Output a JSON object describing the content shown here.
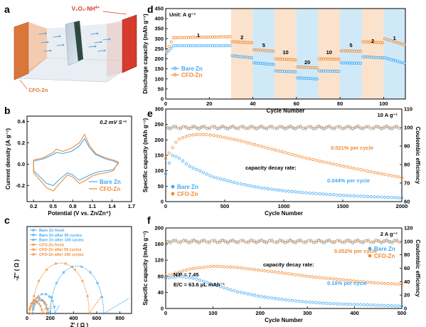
{
  "panel_labels": [
    "a",
    "b",
    "c",
    "d",
    "e",
    "f"
  ],
  "colors": {
    "bare": "#3fa9f5",
    "cfo": "#f28a30",
    "cfo_dark": "#e06d10",
    "band_blue": "#cfe9f9",
    "band_orange": "#fbe2cc",
    "cathode": "#d63b2c",
    "anode": "#d9773a"
  },
  "panel_a": {
    "cathode_label_main": "V₂O₅·NH",
    "cathode_label_sup": "4+",
    "anode_label": "CFO-Zn"
  },
  "chart_data": [
    {
      "id": "b",
      "type": "line",
      "xlabel": "Potential (V vs. Zn/Zn⁺)",
      "ylabel": "Current density (A g⁻¹)",
      "annotation": "0.2 mV S⁻¹",
      "xlim": [
        0.1,
        1.7
      ],
      "ylim": [
        -0.35,
        0.45
      ],
      "xticks": [
        "0.2",
        "0.5",
        "0.8",
        "1.1",
        "1.4",
        "1.7"
      ],
      "yticks": [
        "-0.2",
        "0.0",
        "0.2",
        "0.4"
      ],
      "series": [
        {
          "name": "Bare Zn",
          "color": "#3fa9f5",
          "x": [
            0.2,
            0.35,
            0.5,
            0.55,
            0.65,
            0.78,
            0.9,
            0.98,
            1.05,
            1.15,
            1.3,
            1.42,
            1.5,
            1.42,
            1.32,
            1.2,
            1.1,
            1.0,
            0.9,
            0.8,
            0.72,
            0.6,
            0.5,
            0.4,
            0.3,
            0.2
          ],
          "y": [
            0.03,
            0.05,
            0.09,
            0.11,
            0.1,
            0.12,
            0.17,
            0.24,
            0.16,
            0.09,
            0.05,
            0.03,
            0.01,
            -0.05,
            -0.06,
            -0.07,
            -0.09,
            -0.12,
            -0.15,
            -0.1,
            -0.08,
            -0.14,
            -0.2,
            -0.18,
            -0.12,
            -0.06
          ]
        },
        {
          "name": "CFO-Zn",
          "color": "#f28a30",
          "x": [
            0.2,
            0.35,
            0.5,
            0.55,
            0.65,
            0.78,
            0.9,
            0.98,
            1.05,
            1.15,
            1.3,
            1.42,
            1.5,
            1.42,
            1.32,
            1.2,
            1.1,
            1.0,
            0.9,
            0.8,
            0.72,
            0.6,
            0.5,
            0.4,
            0.3,
            0.2
          ],
          "y": [
            0.04,
            0.06,
            0.11,
            0.14,
            0.12,
            0.15,
            0.2,
            0.28,
            0.18,
            0.1,
            0.06,
            0.04,
            0.02,
            -0.06,
            -0.08,
            -0.09,
            -0.11,
            -0.15,
            -0.18,
            -0.12,
            -0.1,
            -0.18,
            -0.25,
            -0.22,
            -0.15,
            -0.08
          ]
        }
      ],
      "legend": [
        "Bare Zn",
        "CFO-Zn"
      ]
    },
    {
      "id": "c",
      "type": "line",
      "xlabel": "Z' ( Ω )",
      "ylabel": "-Z'' ( Ω )",
      "xlim": [
        0,
        900
      ],
      "ylim": [
        0,
        400
      ],
      "xticks": [
        "0",
        "200",
        "400",
        "600",
        "800"
      ],
      "yticks": [],
      "series": [
        {
          "name": "Bare Zn fresh",
          "color": "#3fa9f5",
          "center": 430,
          "radius": 230,
          "tail_x": 880,
          "tail_y": 70
        },
        {
          "name": "Bare Zn after 50 cycles",
          "color": "#3fa9f5",
          "center": 145,
          "radius": 95,
          "tail_x": 280,
          "tail_y": 40
        },
        {
          "name": "Bare Zn after 100 cycles",
          "color": "#3fa9f5",
          "center": 115,
          "radius": 65,
          "tail_x": 220,
          "tail_y": 30
        },
        {
          "name": "CFO-Zn fresh",
          "color": "#f28a30",
          "center": 290,
          "radius": 245,
          "tail_x": 640,
          "tail_y": 80
        },
        {
          "name": "CFO-Zn after 50 cycles",
          "color": "#f28a30",
          "center": 95,
          "radius": 75,
          "tail_x": 210,
          "tail_y": 45
        },
        {
          "name": "CFO-Zn after 100 cycles",
          "color": "#f28a30",
          "center": 75,
          "radius": 55,
          "tail_x": 170,
          "tail_y": 35
        }
      ],
      "legend": [
        "Bare Zn fresh",
        "Bare Zn after 50 cycles",
        "Bare Zn after 100 cycles",
        "CFO-Zn fresh",
        "CFO-Zn after 50 cycles",
        "CFO-Zn after 100 cycles"
      ]
    },
    {
      "id": "d",
      "type": "scatter",
      "unit_label": "Unit: A g⁻¹",
      "xlabel": "Cycle Number",
      "ylabel": "Discharge capacity (mAh g⁻¹)",
      "xlim": [
        0,
        110
      ],
      "ylim": [
        0,
        450
      ],
      "xticks": [
        "0",
        "20",
        "40",
        "60",
        "80",
        "100"
      ],
      "yticks": [
        "0",
        "50",
        "100",
        "150",
        "200",
        "250",
        "300",
        "350",
        "400",
        "450"
      ],
      "rate_segments": [
        {
          "rate": "1",
          "start": 0,
          "end": 30,
          "band": "none"
        },
        {
          "rate": "2",
          "start": 30,
          "end": 40,
          "band": "orange"
        },
        {
          "rate": "5",
          "start": 40,
          "end": 50,
          "band": "blue"
        },
        {
          "rate": "10",
          "start": 50,
          "end": 60,
          "band": "orange"
        },
        {
          "rate": "20",
          "start": 60,
          "end": 70,
          "band": "blue"
        },
        {
          "rate": "10",
          "start": 70,
          "end": 80,
          "band": "orange"
        },
        {
          "rate": "5",
          "start": 80,
          "end": 90,
          "band": "blue"
        },
        {
          "rate": "2",
          "start": 90,
          "end": 100,
          "band": "orange"
        },
        {
          "rate": "1",
          "start": 100,
          "end": 110,
          "band": "blue"
        }
      ],
      "series": [
        {
          "name": "Bare Zn",
          "color": "#3fa9f5",
          "segments": [
            [
              230,
              265,
              265
            ],
            [
              215,
              205
            ],
            [
              180,
              172
            ],
            [
              140,
              135
            ],
            [
              105,
              100
            ],
            [
              140,
              138
            ],
            [
              180,
              178
            ],
            [
              210,
              205
            ],
            [
              205,
              178
            ]
          ]
        },
        {
          "name": "CFO-Zn",
          "color": "#f28a30",
          "segments": [
            [
              240,
              305,
              310
            ],
            [
              285,
              280
            ],
            [
              245,
              238
            ],
            [
              200,
              195
            ],
            [
              160,
              155
            ],
            [
              200,
              198
            ],
            [
              240,
              238
            ],
            [
              285,
              280
            ],
            [
              300,
              270
            ]
          ]
        }
      ],
      "legend": [
        "Bare Zn",
        "CFO-Zn"
      ]
    },
    {
      "id": "e",
      "type": "scatter",
      "rate_label": "10 A g⁻¹",
      "xlabel": "Cycle Number",
      "ylabel": "Specific capacity (mAh g⁻¹)",
      "y2label": "Coulombic efficiency",
      "xlim": [
        0,
        2000
      ],
      "ylim": [
        0,
        300
      ],
      "y2lim": [
        60,
        110
      ],
      "xticks": [
        "0",
        "500",
        "1000",
        "1500",
        "2000"
      ],
      "yticks": [
        "0",
        "50",
        "100",
        "150",
        "200",
        "250",
        "300"
      ],
      "y2ticks": [
        "60",
        "70",
        "80",
        "90",
        "100",
        "110"
      ],
      "annotations": {
        "decay_title": "capacity decay rate:",
        "cfo_rate": "0.021% per cycle",
        "bare_rate": "0.044% per cycle"
      },
      "series": [
        {
          "name": "Bare Zn",
          "color": "#3fa9f5",
          "x": [
            0,
            50,
            100,
            200,
            400,
            600,
            800,
            1000,
            1200,
            1500,
            1800,
            2000
          ],
          "y": [
            90,
            150,
            145,
            115,
            80,
            60,
            45,
            35,
            28,
            20,
            15,
            12
          ]
        },
        {
          "name": "CFO-Zn",
          "color": "#f28a30",
          "x": [
            0,
            100,
            200,
            300,
            400,
            600,
            800,
            1000,
            1200,
            1500,
            1800,
            2000
          ],
          "y": [
            140,
            200,
            215,
            218,
            215,
            200,
            180,
            160,
            140,
            115,
            92,
            78
          ]
        }
      ],
      "ce_value": 100,
      "legend": [
        "Bare Zn",
        "CFO-Zn"
      ]
    },
    {
      "id": "f",
      "type": "scatter",
      "rate_label": "2 A g⁻¹",
      "xlabel": "Cycle Number",
      "ylabel": "Specific capacity (mAh g⁻¹)",
      "y2label": "Coulombic efficiency",
      "xlim": [
        0,
        500
      ],
      "ylim": [
        0,
        200
      ],
      "y2lim": [
        0,
        120
      ],
      "xticks": [
        "0",
        "100",
        "200",
        "300",
        "400",
        "500"
      ],
      "yticks": [
        "0",
        "40",
        "80",
        "120",
        "160",
        "200"
      ],
      "y2ticks": [
        "0",
        "20",
        "40",
        "60",
        "80",
        "100",
        "120"
      ],
      "annotations": {
        "np": "N/P = 7.45",
        "ec": "E/C = 63.6 μL mAh⁻¹",
        "decay_title": "capacity decay rate:",
        "cfo_rate": "0.052% per cycle",
        "bare_rate": "0.18% per cycle"
      },
      "series": [
        {
          "name": "Bare Zn",
          "color": "#3fa9f5",
          "x": [
            0,
            30,
            60,
            100,
            150,
            200,
            250,
            300,
            350,
            400,
            450,
            500
          ],
          "y": [
            75,
            80,
            75,
            60,
            42,
            30,
            22,
            16,
            12,
            10,
            8,
            6
          ]
        },
        {
          "name": "CFO-Zn",
          "color": "#f28a30",
          "x": [
            0,
            50,
            100,
            150,
            200,
            250,
            300,
            350,
            400,
            450,
            500
          ],
          "y": [
            80,
            98,
            105,
            102,
            95,
            88,
            80,
            74,
            68,
            63,
            60
          ]
        }
      ],
      "ce_value": 100,
      "legend": [
        "Bare Zn",
        "CFO-Zn"
      ]
    }
  ]
}
